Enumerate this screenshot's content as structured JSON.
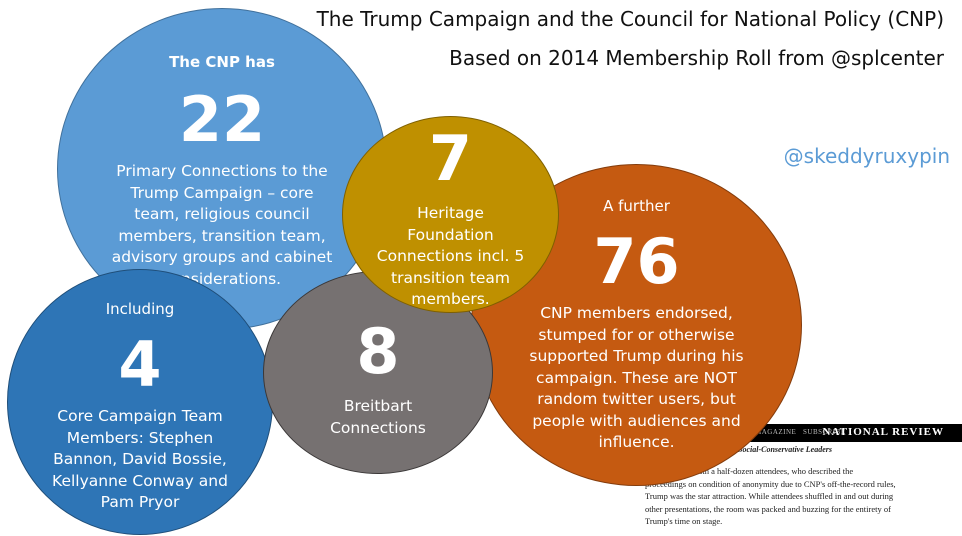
{
  "header": {
    "title": "The Trump Campaign and the Council for National Policy (CNP)",
    "subtitle": "Based on 2014 Membership Roll from @splcenter",
    "handle": "@skeddyruxypin"
  },
  "colors": {
    "light_blue": "#5b9bd5",
    "orange": "#c55a11",
    "dark_blue": "#2e75b6",
    "gray": "#767171",
    "gold": "#bf9000"
  },
  "circles": {
    "cnp": {
      "intro": "The CNP has",
      "number": "22",
      "lines": [
        "Primary Connections to the",
        "Trump Campaign – core",
        "team, religious council",
        "members, transition team,",
        "advisory groups and cabinet",
        "considerations."
      ]
    },
    "further": {
      "intro": "A further",
      "number": "76",
      "lines": [
        "CNP members endorsed,",
        "stumped for or otherwise",
        "supported Trump during his",
        "campaign. These are NOT",
        "random twitter users, but",
        "people with audiences and",
        "influence."
      ]
    },
    "including": {
      "intro": "Including",
      "number": "4",
      "lines": [
        "Core Campaign Team",
        "Members: Stephen",
        "Bannon, David Bossie,",
        "Kellyanne Conway and",
        "Pam Pryor"
      ]
    },
    "breitbart": {
      "number": "8",
      "lines": [
        "Breitbart",
        "Connections"
      ]
    },
    "heritage": {
      "number": "7",
      "lines": [
        "Heritage",
        "Foundation",
        "Connections incl. 5",
        "transition team",
        "members."
      ]
    }
  },
  "clipping": {
    "nav": [
      "MAGAZINE",
      "SUBSCRIBE"
    ],
    "brand": "NATIONAL REVIEW",
    "headline": "Social-Conservative Leaders",
    "body": [
      "conversations with a half-dozen attendees, who described the",
      "proceedings on condition of anonymity due to CNP's off-the-record rules,",
      "Trump was the star attraction. While attendees shuffled in and out during",
      "other presentations, the room was packed and buzzing for the entirety of",
      "Trump's time on stage."
    ]
  }
}
